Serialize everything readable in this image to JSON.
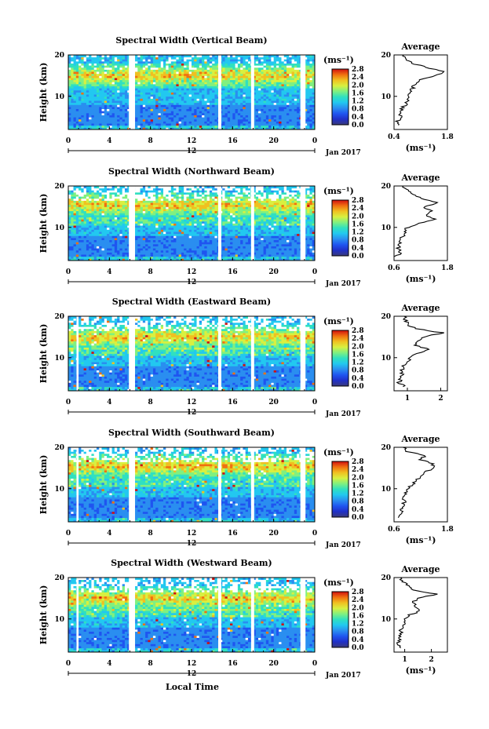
{
  "figure": {
    "xlabel": "Local Time",
    "date_label": "Jan 2017",
    "date_day": "12",
    "height_label": "Height (km)",
    "unit_label": "(ms⁻¹)",
    "average_title": "Average",
    "colorbar_ticks": [
      "0.0",
      "0.4",
      "0.8",
      "1.2",
      "1.6",
      "2.0",
      "2.4",
      "2.8"
    ],
    "x_ticks": [
      "0",
      "4",
      "8",
      "12",
      "16",
      "20",
      "0"
    ],
    "y_ticks": [
      "20",
      "10"
    ],
    "colormap": [
      "#3a3a7a",
      "#2030c8",
      "#1f55f0",
      "#2a8ef0",
      "#22c8f0",
      "#30e0c0",
      "#80f080",
      "#d8f040",
      "#f0c020",
      "#f07010",
      "#d01010"
    ]
  },
  "chart_data": [
    {
      "type": "heatmap",
      "title": "Spectral Width (Vertical Beam)",
      "xlabel": "",
      "ylabel": "Height (km)",
      "x_range_hours": [
        0,
        24
      ],
      "ylim": [
        2,
        20
      ],
      "clim": [
        0.0,
        2.8
      ],
      "gaps_hours": [
        [
          5.9,
          6.5
        ],
        [
          14.6,
          14.9
        ],
        [
          17.8,
          18.1
        ],
        [
          22.6,
          23.1
        ]
      ],
      "average_profile": {
        "xlabel": "(ms⁻¹)",
        "xlim": [
          0.4,
          1.8
        ],
        "xticks": [
          "0.4",
          "1.8"
        ],
        "heights_km": [
          3,
          4,
          5,
          6,
          7,
          8,
          9,
          10,
          11,
          12,
          13,
          14,
          15,
          16,
          17,
          18,
          19,
          20
        ],
        "values": [
          0.55,
          0.5,
          0.6,
          0.55,
          0.6,
          0.7,
          0.75,
          0.8,
          0.8,
          0.9,
          0.95,
          1.05,
          1.5,
          1.7,
          1.25,
          0.85,
          0.7,
          0.65
        ]
      }
    },
    {
      "type": "heatmap",
      "title": "Spectral Width (Northward Beam)",
      "xlabel": "",
      "ylabel": "Height (km)",
      "x_range_hours": [
        0,
        24
      ],
      "ylim": [
        2,
        20
      ],
      "clim": [
        0.0,
        2.8
      ],
      "gaps_hours": [
        [
          5.9,
          6.5
        ],
        [
          14.6,
          14.9
        ],
        [
          17.8,
          18.1
        ],
        [
          22.6,
          23.1
        ]
      ],
      "average_profile": {
        "xlabel": "(ms⁻¹)",
        "xlim": [
          0.6,
          1.8
        ],
        "xticks": [
          "0.6",
          "1.8"
        ],
        "heights_km": [
          3,
          4,
          5,
          6,
          7,
          8,
          9,
          10,
          11,
          12,
          13,
          14,
          15,
          16,
          17,
          18,
          19,
          20
        ],
        "values": [
          0.65,
          0.75,
          0.7,
          0.72,
          0.75,
          0.8,
          0.85,
          0.9,
          1.2,
          1.55,
          1.3,
          1.45,
          1.25,
          1.6,
          1.2,
          1.0,
          0.9,
          0.8
        ]
      }
    },
    {
      "type": "heatmap",
      "title": "Spectral Width (Eastward Beam)",
      "xlabel": "",
      "ylabel": "Height (km)",
      "x_range_hours": [
        0,
        24
      ],
      "ylim": [
        2,
        20
      ],
      "clim": [
        0.0,
        2.8
      ],
      "gaps_hours": [
        [
          0.8,
          1.0
        ],
        [
          5.9,
          6.5
        ],
        [
          14.6,
          14.9
        ],
        [
          17.8,
          18.1
        ],
        [
          22.6,
          23.1
        ]
      ],
      "average_profile": {
        "xlabel": "",
        "xlim": [
          0.6,
          2.2
        ],
        "xticks": [
          "1",
          "2"
        ],
        "heights_km": [
          3,
          4,
          5,
          6,
          7,
          8,
          9,
          10,
          11,
          12,
          13,
          14,
          15,
          16,
          17,
          18,
          19,
          20
        ],
        "values": [
          0.9,
          0.75,
          0.8,
          0.85,
          0.85,
          0.9,
          1.0,
          1.1,
          1.3,
          1.7,
          1.2,
          1.35,
          1.5,
          2.05,
          1.25,
          1.0,
          0.95,
          0.9
        ]
      }
    },
    {
      "type": "heatmap",
      "title": "Spectral Width (Southward Beam)",
      "xlabel": "",
      "ylabel": "Height (km)",
      "x_range_hours": [
        0,
        24
      ],
      "ylim": [
        2,
        20
      ],
      "clim": [
        0.0,
        2.8
      ],
      "gaps_hours": [
        [
          0.8,
          1.0
        ],
        [
          5.9,
          6.5
        ],
        [
          14.6,
          14.9
        ],
        [
          17.8,
          18.1
        ],
        [
          22.6,
          23.1
        ]
      ],
      "average_profile": {
        "xlabel": "(ms⁻¹)",
        "xlim": [
          0.6,
          1.8
        ],
        "xticks": [
          "0.6",
          "1.8"
        ],
        "heights_km": [
          3,
          4,
          5,
          6,
          7,
          8,
          9,
          10,
          11,
          12,
          13,
          14,
          15,
          16,
          17,
          18,
          19,
          20
        ],
        "values": [
          0.7,
          0.8,
          0.75,
          0.8,
          0.85,
          0.8,
          0.85,
          0.9,
          1.0,
          1.1,
          1.2,
          1.3,
          1.5,
          1.45,
          1.2,
          1.3,
          0.9,
          0.8
        ]
      }
    },
    {
      "type": "heatmap",
      "title": "Spectral Width (Westward Beam)",
      "xlabel": "",
      "ylabel": "Height (km)",
      "x_range_hours": [
        0,
        24
      ],
      "ylim": [
        2,
        20
      ],
      "clim": [
        0.0,
        2.8
      ],
      "gaps_hours": [
        [
          0.8,
          1.0
        ],
        [
          5.9,
          6.5
        ],
        [
          14.6,
          14.9
        ],
        [
          17.8,
          18.1
        ],
        [
          22.6,
          23.1
        ]
      ],
      "average_profile": {
        "xlabel": "(ms⁻¹)",
        "xlim": [
          0.6,
          2.6
        ],
        "xticks": [
          "1",
          "2"
        ],
        "heights_km": [
          3,
          4,
          5,
          6,
          7,
          8,
          9,
          10,
          11,
          12,
          13,
          14,
          15,
          16,
          17,
          18,
          19,
          20
        ],
        "values": [
          0.8,
          0.75,
          0.8,
          0.85,
          0.85,
          0.9,
          0.95,
          1.0,
          1.2,
          1.6,
          1.4,
          1.3,
          1.5,
          2.2,
          1.3,
          1.1,
          0.95,
          0.85
        ]
      }
    }
  ]
}
